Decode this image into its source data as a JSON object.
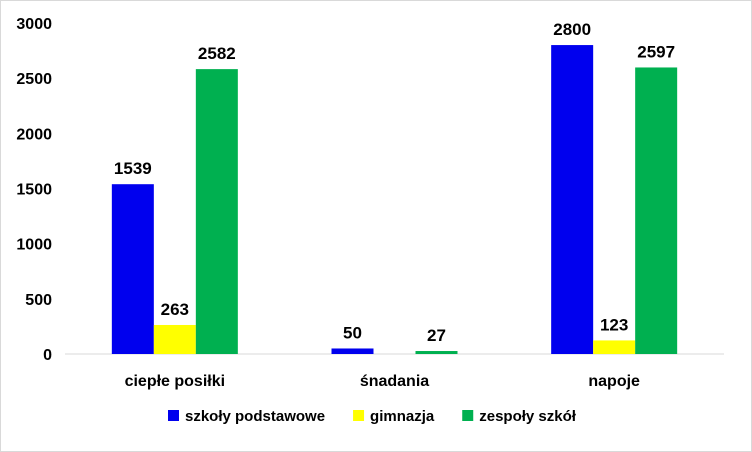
{
  "chart_data": {
    "type": "bar",
    "categories": [
      "ciepłe posiłki",
      "śnadania",
      "napoje"
    ],
    "series": [
      {
        "name": "szkoły podstawowe",
        "color": "#0000ee",
        "values": [
          1539,
          50,
          2800
        ]
      },
      {
        "name": "gimnazja",
        "color": "#ffff00",
        "values": [
          263,
          0,
          123
        ]
      },
      {
        "name": "zespoły szkół",
        "color": "#00b050",
        "values": [
          2582,
          27,
          2597
        ]
      }
    ],
    "data_labels": [
      [
        "1539",
        "50",
        "2800"
      ],
      [
        "263",
        "",
        "123"
      ],
      [
        "2582",
        "27",
        "2597"
      ]
    ],
    "ylim": [
      0,
      3000
    ],
    "yticks": [
      0,
      500,
      1000,
      1500,
      2000,
      2500,
      3000
    ],
    "grid": false,
    "legend_position": "bottom",
    "title": "",
    "xlabel": "",
    "ylabel": ""
  }
}
